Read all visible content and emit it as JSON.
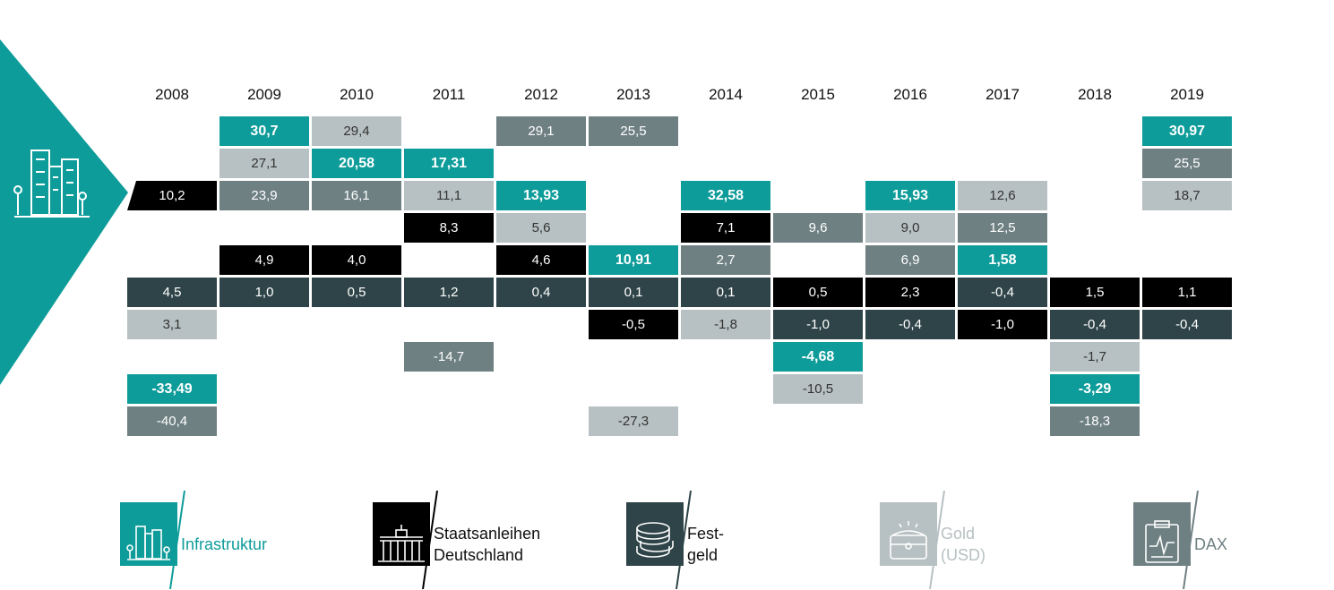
{
  "chart_data": {
    "type": "table",
    "years": [
      "2008",
      "2009",
      "2010",
      "2011",
      "2012",
      "2013",
      "2014",
      "2015",
      "2016",
      "2017",
      "2018",
      "2019"
    ],
    "categories": [
      {
        "key": "infra",
        "label": "Infrastruktur",
        "color": "#0e9c9a",
        "icon": "city-buildings-icon"
      },
      {
        "key": "staat",
        "label": "Staatsanleihen\nDeutschland",
        "color": "#000000",
        "icon": "brandenburg-gate-icon"
      },
      {
        "key": "fest",
        "label": "Fest-\ngeld",
        "color": "#2f4448",
        "icon": "coin-stack-icon"
      },
      {
        "key": "gold",
        "label": "Gold\n(USD)",
        "color": "#b7c0c2",
        "icon": "treasure-chest-icon"
      },
      {
        "key": "dax",
        "label": "DAX",
        "color": "#6f8083",
        "icon": "clipboard-chart-icon"
      }
    ],
    "columns": [
      {
        "year": "2008",
        "cells": [
          {
            "row": 2,
            "cat": "staat",
            "value": "10,2"
          },
          {
            "row": 5,
            "cat": "fest",
            "value": "4,5"
          },
          {
            "row": 6,
            "cat": "gold",
            "value": "3,1"
          },
          {
            "row": 8,
            "cat": "infra",
            "value": "-33,49"
          },
          {
            "row": 9,
            "cat": "dax",
            "value": "-40,4"
          }
        ]
      },
      {
        "year": "2009",
        "cells": [
          {
            "row": 0,
            "cat": "infra",
            "value": "30,7"
          },
          {
            "row": 1,
            "cat": "gold",
            "value": "27,1"
          },
          {
            "row": 2,
            "cat": "dax",
            "value": "23,9"
          },
          {
            "row": 4,
            "cat": "staat",
            "value": "4,9"
          },
          {
            "row": 5,
            "cat": "fest",
            "value": "1,0"
          }
        ]
      },
      {
        "year": "2010",
        "cells": [
          {
            "row": 0,
            "cat": "gold",
            "value": "29,4"
          },
          {
            "row": 1,
            "cat": "infra",
            "value": "20,58"
          },
          {
            "row": 2,
            "cat": "dax",
            "value": "16,1"
          },
          {
            "row": 4,
            "cat": "staat",
            "value": "4,0"
          },
          {
            "row": 5,
            "cat": "fest",
            "value": "0,5"
          }
        ]
      },
      {
        "year": "2011",
        "cells": [
          {
            "row": 1,
            "cat": "infra",
            "value": "17,31"
          },
          {
            "row": 2,
            "cat": "gold",
            "value": "11,1"
          },
          {
            "row": 3,
            "cat": "staat",
            "value": "8,3"
          },
          {
            "row": 5,
            "cat": "fest",
            "value": "1,2"
          },
          {
            "row": 7,
            "cat": "dax",
            "value": "-14,7"
          }
        ]
      },
      {
        "year": "2012",
        "cells": [
          {
            "row": 0,
            "cat": "dax",
            "value": "29,1"
          },
          {
            "row": 2,
            "cat": "infra",
            "value": "13,93"
          },
          {
            "row": 3,
            "cat": "gold",
            "value": "5,6"
          },
          {
            "row": 4,
            "cat": "staat",
            "value": "4,6"
          },
          {
            "row": 5,
            "cat": "fest",
            "value": "0,4"
          }
        ]
      },
      {
        "year": "2013",
        "cells": [
          {
            "row": 0,
            "cat": "dax",
            "value": "25,5"
          },
          {
            "row": 4,
            "cat": "infra",
            "value": "10,91"
          },
          {
            "row": 5,
            "cat": "fest",
            "value": "0,1"
          },
          {
            "row": 6,
            "cat": "staat",
            "value": "-0,5"
          },
          {
            "row": 9,
            "cat": "gold",
            "value": "-27,3"
          }
        ]
      },
      {
        "year": "2014",
        "cells": [
          {
            "row": 2,
            "cat": "infra",
            "value": "32,58"
          },
          {
            "row": 3,
            "cat": "staat",
            "value": "7,1"
          },
          {
            "row": 4,
            "cat": "dax",
            "value": "2,7"
          },
          {
            "row": 5,
            "cat": "fest",
            "value": "0,1"
          },
          {
            "row": 6,
            "cat": "gold",
            "value": "-1,8"
          }
        ]
      },
      {
        "year": "2015",
        "cells": [
          {
            "row": 3,
            "cat": "dax",
            "value": "9,6"
          },
          {
            "row": 5,
            "cat": "staat",
            "value": "0,5"
          },
          {
            "row": 6,
            "cat": "fest",
            "value": "-1,0"
          },
          {
            "row": 7,
            "cat": "infra",
            "value": "-4,68"
          },
          {
            "row": 8,
            "cat": "gold",
            "value": "-10,5"
          }
        ]
      },
      {
        "year": "2016",
        "cells": [
          {
            "row": 2,
            "cat": "infra",
            "value": "15,93"
          },
          {
            "row": 3,
            "cat": "gold",
            "value": "9,0"
          },
          {
            "row": 4,
            "cat": "dax",
            "value": "6,9"
          },
          {
            "row": 5,
            "cat": "staat",
            "value": "2,3"
          },
          {
            "row": 6,
            "cat": "fest",
            "value": "-0,4"
          }
        ]
      },
      {
        "year": "2017",
        "cells": [
          {
            "row": 2,
            "cat": "gold",
            "value": "12,6"
          },
          {
            "row": 3,
            "cat": "dax",
            "value": "12,5"
          },
          {
            "row": 4,
            "cat": "infra",
            "value": "1,58"
          },
          {
            "row": 5,
            "cat": "fest",
            "value": "-0,4"
          },
          {
            "row": 6,
            "cat": "staat",
            "value": "-1,0"
          }
        ]
      },
      {
        "year": "2018",
        "cells": [
          {
            "row": 5,
            "cat": "staat",
            "value": "1,5"
          },
          {
            "row": 6,
            "cat": "fest",
            "value": "-0,4"
          },
          {
            "row": 7,
            "cat": "gold",
            "value": "-1,7"
          },
          {
            "row": 8,
            "cat": "infra",
            "value": "-3,29"
          },
          {
            "row": 9,
            "cat": "dax",
            "value": "-18,3"
          }
        ]
      },
      {
        "year": "2019",
        "cells": [
          {
            "row": 0,
            "cat": "infra",
            "value": "30,97"
          },
          {
            "row": 1,
            "cat": "dax",
            "value": "25,5"
          },
          {
            "row": 2,
            "cat": "gold",
            "value": "18,7"
          },
          {
            "row": 5,
            "cat": "staat",
            "value": "1,1"
          },
          {
            "row": 6,
            "cat": "fest",
            "value": "-0,4"
          }
        ]
      }
    ]
  },
  "header_icon": "city-buildings-icon",
  "legend_text_colors": {
    "infra": "#0e9c9a",
    "staat": "#111111",
    "fest": "#111111",
    "gold": "#b7c0c2",
    "dax": "#6f8083"
  }
}
